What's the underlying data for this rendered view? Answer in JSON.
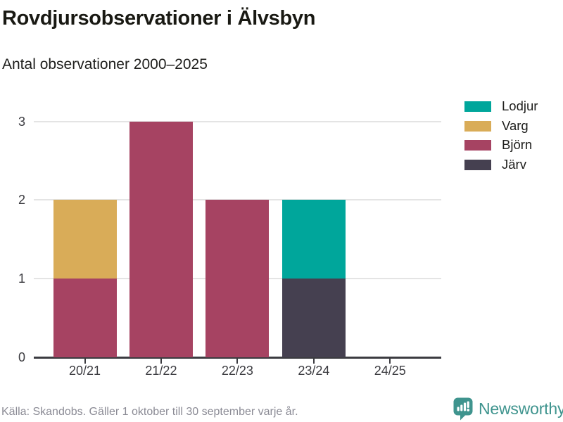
{
  "header": {
    "title": "Rovdjursobservationer i Älvsbyn",
    "subtitle": "Antal observationer 2000–2025"
  },
  "footer": {
    "source": "Källa: Skandobs. Gäller 1 oktober till 30 september varje år.",
    "brand": "Newsworthy"
  },
  "colors": {
    "lodjur": "#00a69b",
    "varg": "#d9ac58",
    "bjorn": "#a64362",
    "jarv": "#454050",
    "gridline": "#e4e4e4",
    "axis": "#3b3b40",
    "text_dark": "#1d1d1b",
    "text_muted": "#8b8b95",
    "brand_teal": "#3f948e"
  },
  "chart_data": {
    "type": "bar",
    "stacked": true,
    "title": "Rovdjursobservationer i Älvsbyn",
    "subtitle": "Antal observationer 2000–2025",
    "categories": [
      "20/21",
      "21/22",
      "22/23",
      "23/24",
      "24/25"
    ],
    "series": [
      {
        "name": "Lodjur",
        "color": "#00a69b",
        "values": [
          0,
          0,
          0,
          1,
          0
        ]
      },
      {
        "name": "Varg",
        "color": "#d9ac58",
        "values": [
          1,
          0,
          0,
          0,
          0
        ]
      },
      {
        "name": "Björn",
        "color": "#a64362",
        "values": [
          1,
          3,
          2,
          0,
          0
        ]
      },
      {
        "name": "Järv",
        "color": "#454050",
        "values": [
          0,
          0,
          0,
          1,
          0
        ]
      }
    ],
    "stack_order_bottom_to_top": [
      "Järv",
      "Björn",
      "Varg",
      "Lodjur"
    ],
    "totals": [
      2,
      3,
      2,
      2,
      0
    ],
    "xlabel": "",
    "ylabel": "",
    "yticks": [
      0,
      1,
      2,
      3
    ],
    "ylim": [
      0,
      3
    ],
    "grid": "horizontal",
    "legend_position": "right"
  }
}
